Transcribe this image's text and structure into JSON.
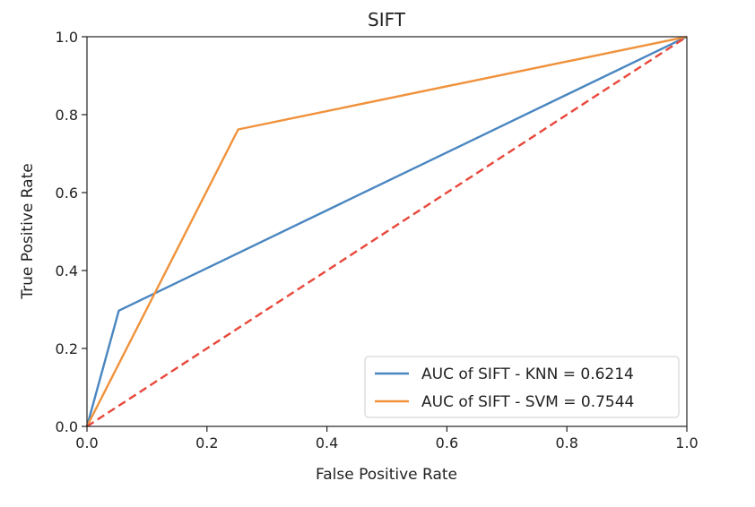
{
  "chart_data": {
    "type": "line",
    "title": "SIFT",
    "xlabel": "False Positive Rate",
    "ylabel": "True Positive Rate",
    "xlim": [
      0.0,
      1.0
    ],
    "ylim": [
      0.0,
      1.0
    ],
    "xticks": [
      "0.0",
      "0.2",
      "0.4",
      "0.6",
      "0.8",
      "1.0"
    ],
    "yticks": [
      "0.0",
      "0.2",
      "0.4",
      "0.6",
      "0.8",
      "1.0"
    ],
    "grid": false,
    "legend_position": "bottom-right",
    "series": [
      {
        "name": "AUC of SIFT - KNN = 0.6214",
        "color": "#4a86c0",
        "x": [
          0.0,
          0.053,
          1.0
        ],
        "y": [
          0.0,
          0.297,
          1.0
        ]
      },
      {
        "name": "AUC of SIFT - SVM = 0.7544",
        "color": "#f0923c",
        "x": [
          0.0,
          0.252,
          1.0
        ],
        "y": [
          0.0,
          0.762,
          1.0
        ]
      }
    ],
    "reference_line": {
      "x": [
        0.0,
        1.0
      ],
      "y": [
        0.0,
        1.0
      ],
      "color": "#e8473a",
      "style": "dashed"
    }
  }
}
